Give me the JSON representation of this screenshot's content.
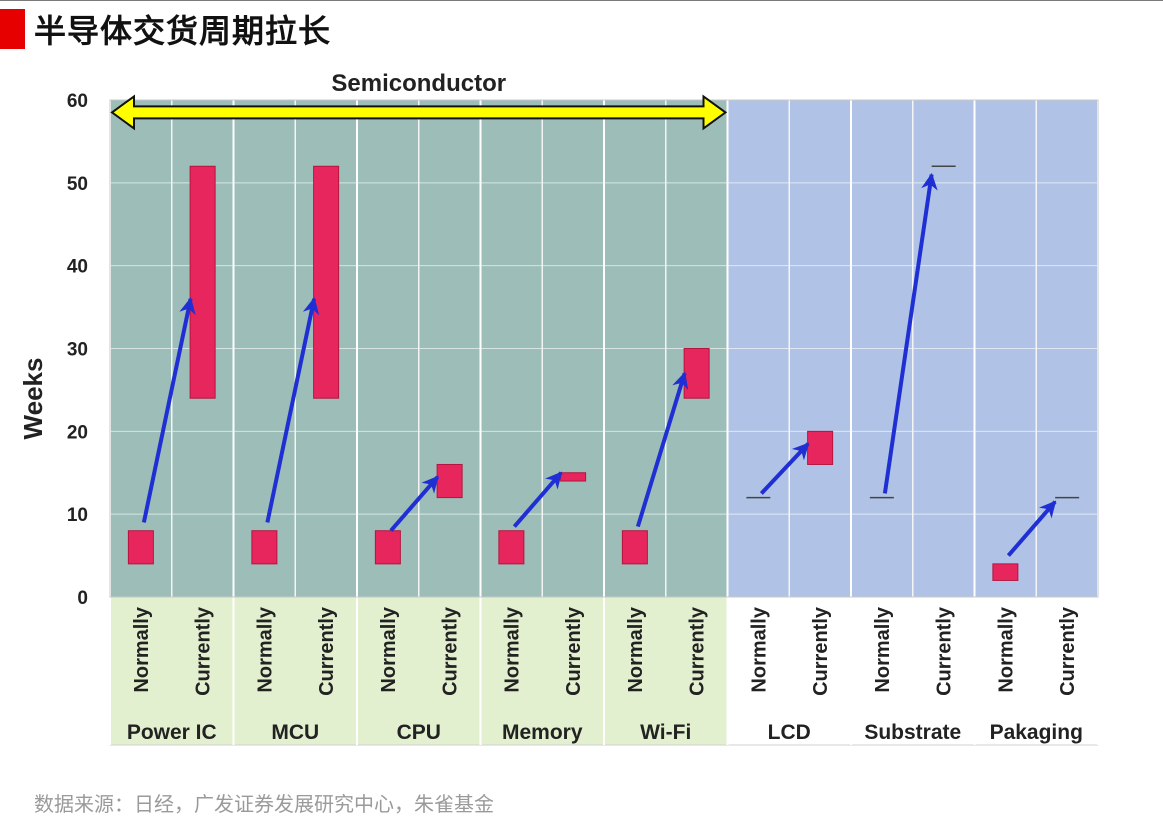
{
  "page": {
    "title": "半导体交货周期拉长",
    "source": "数据来源：日经，广发证券发展研究中心，朱雀基金"
  },
  "colors": {
    "semiconductor_bg": "#9dbdb8",
    "other_bg": "#b0c3e6",
    "semiconductor_label_bg": "#e3f0cf",
    "bar": "#e8265e",
    "bar_stroke": "#b3153f",
    "arrow": "#1f2fd4",
    "band_fill": "#ffff00",
    "title_marker": "#e60000"
  },
  "chart_data": {
    "type": "bar",
    "subtype": "floating-range",
    "ylabel": "Weeks",
    "ylim": [
      0,
      60
    ],
    "yticks": [
      0,
      10,
      20,
      30,
      40,
      50,
      60
    ],
    "grid": true,
    "sub_labels": [
      "Normally",
      "Currently"
    ],
    "band": {
      "label": "Semiconductor",
      "categories": [
        "Power IC",
        "MCU",
        "CPU",
        "Memory",
        "Wi-Fi"
      ]
    },
    "categories": [
      {
        "name": "Power IC",
        "group": "semiconductor",
        "normally": [
          4,
          8
        ],
        "currently": [
          24,
          52
        ]
      },
      {
        "name": "MCU",
        "group": "semiconductor",
        "normally": [
          4,
          8
        ],
        "currently": [
          24,
          52
        ]
      },
      {
        "name": "CPU",
        "group": "semiconductor",
        "normally": [
          4,
          8
        ],
        "currently": [
          12,
          16
        ]
      },
      {
        "name": "Memory",
        "group": "semiconductor",
        "normally": [
          4,
          8
        ],
        "currently": [
          14,
          15
        ]
      },
      {
        "name": "Wi-Fi",
        "group": "semiconductor",
        "normally": [
          4,
          8
        ],
        "currently": [
          24,
          30
        ]
      },
      {
        "name": "LCD",
        "group": "other",
        "normally": [
          12,
          12
        ],
        "currently": [
          16,
          20
        ]
      },
      {
        "name": "Substrate",
        "group": "other",
        "normally": [
          12,
          12
        ],
        "currently": [
          52,
          52
        ]
      },
      {
        "name": "Pakaging",
        "group": "other",
        "normally": [
          2,
          4
        ],
        "currently": [
          12,
          12
        ]
      }
    ],
    "arrows": [
      {
        "category": "Power IC",
        "from": 9,
        "to": 36
      },
      {
        "category": "MCU",
        "from": 9,
        "to": 36
      },
      {
        "category": "CPU",
        "from": 8,
        "to": 14.5
      },
      {
        "category": "Memory",
        "from": 8.5,
        "to": 15
      },
      {
        "category": "Wi-Fi",
        "from": 8.5,
        "to": 27
      },
      {
        "category": "LCD",
        "from": 12.5,
        "to": 18.5
      },
      {
        "category": "Substrate",
        "from": 12.5,
        "to": 51
      },
      {
        "category": "Pakaging",
        "from": 5,
        "to": 11.5
      }
    ]
  }
}
